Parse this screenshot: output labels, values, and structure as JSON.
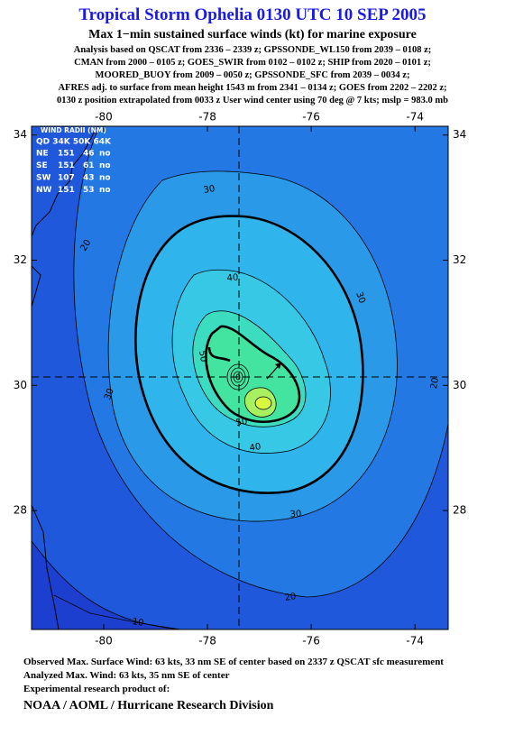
{
  "header": {
    "title": "Tropical Storm Ophelia 0130 UTC 10 SEP 2005",
    "subtitle": "Max 1−min sustained surface winds (kt) for marine exposure",
    "analysis_lines": [
      "Analysis based on  QSCAT from 2336 – 2339 z;  GPSSONDE_WL150 from 2039 – 0108 z;",
      "CMAN from 2000 – 0105 z;  GOES_SWIR from 0102 – 0102 z;  SHIP from 2020 – 0101 z;",
      "MOORED_BUOY from 2009 – 0050 z;  GPSSONDE_SFC from 2039 – 0034 z;",
      "AFRES adj. to surface from mean height 1543 m from 2341 – 0134 z;  GOES from 2202 – 2202 z;",
      "0130 z position extrapolated from 0033 z User wind center using 70 deg @ 7 kts; mslp = 983.0 mb"
    ]
  },
  "chart_data": {
    "type": "contour",
    "xlim": [
      -81.39,
      -73.36
    ],
    "ylim": [
      26.1,
      34.14
    ],
    "xticks": [
      -80,
      -78,
      -76,
      -74
    ],
    "yticks": [
      28,
      30,
      32,
      34
    ],
    "contour_levels": [
      10,
      20,
      30,
      40,
      50
    ]
  },
  "wind_radii": {
    "title": "WIND RADII (NM)",
    "header": "QD 34K 50K 64K",
    "rows": [
      [
        "NE",
        "151",
        "46",
        "no"
      ],
      [
        "SE",
        "151",
        "61",
        "no"
      ],
      [
        "SW",
        "107",
        "43",
        "no"
      ],
      [
        "NW",
        "151",
        "53",
        "no"
      ]
    ]
  },
  "footer": [
    "Observed Max. Surface Wind: 63 kts, 33 nm SE of center based on 2337 z QSCAT sfc measurement",
    "Analyzed Max. Wind: 63 kts, 35 nm SE of center",
    "Experimental research product of:",
    "NOAA / AOML / Hurricane Research Division"
  ]
}
